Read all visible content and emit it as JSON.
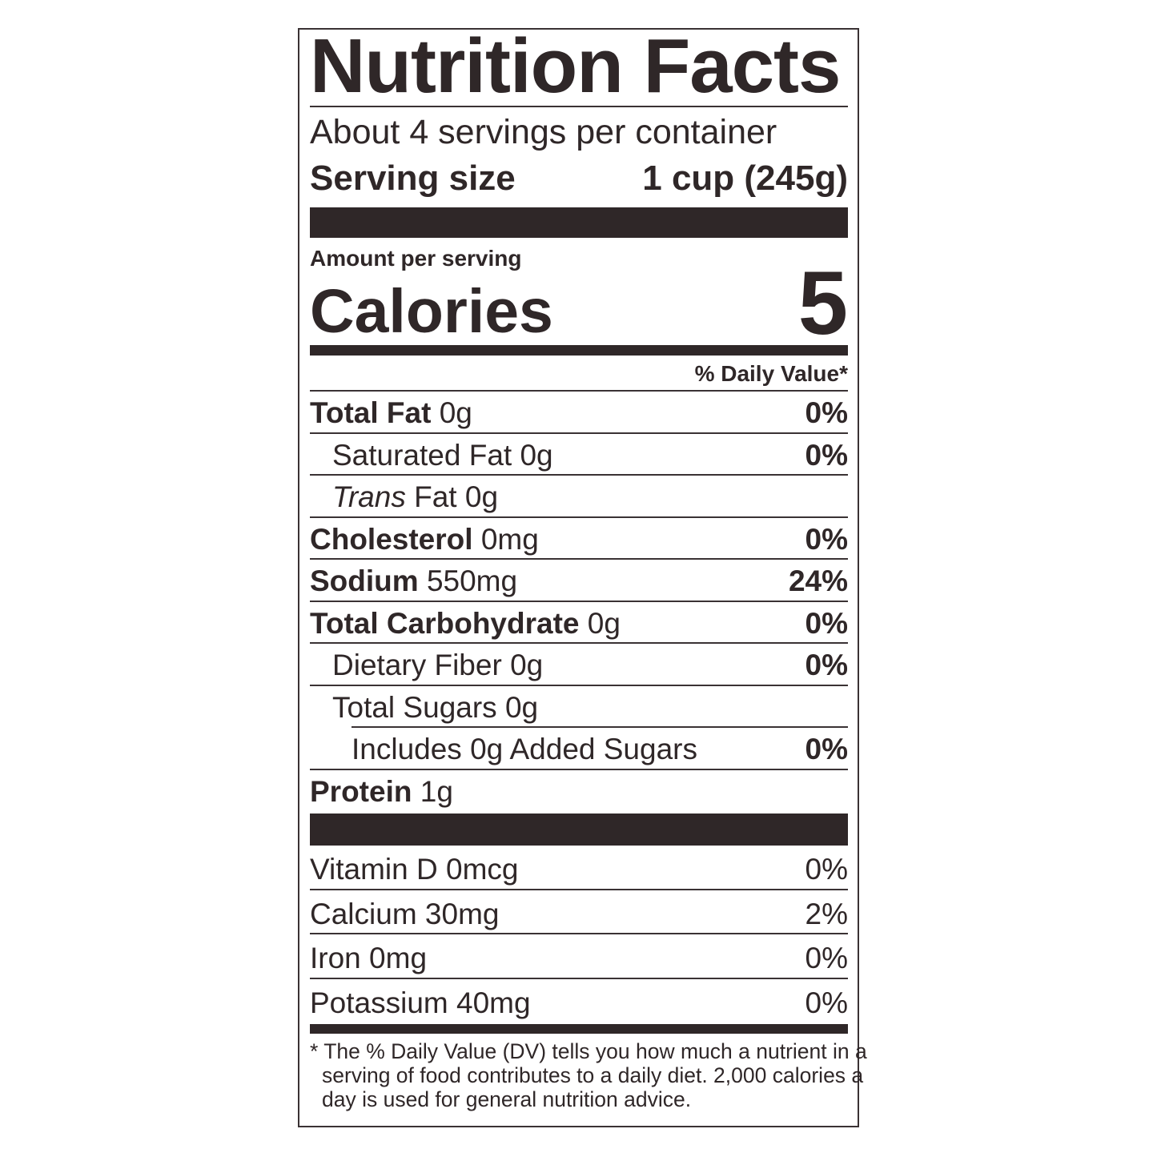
{
  "title": "Nutrition Facts",
  "servings_per_container": "About 4 servings per container",
  "serving_size": {
    "label": "Serving size",
    "value": "1 cup (245g)"
  },
  "amount_per_serving": "Amount per serving",
  "calories": {
    "label": "Calories",
    "value": "5"
  },
  "daily_value_header": "% Daily Value*",
  "nutrients": [
    {
      "name": "Total Fat",
      "amount": "0g",
      "dv": "0%"
    },
    {
      "name": "Saturated Fat",
      "amount": "0g",
      "dv": "0%"
    },
    {
      "name_italic": "Trans",
      "name": "Fat",
      "amount": "0g",
      "dv": ""
    },
    {
      "name": "Cholesterol",
      "amount": "0mg",
      "dv": "0%"
    },
    {
      "name": "Sodium",
      "amount": "550mg",
      "dv": "24%"
    },
    {
      "name": "Total Carbohydrate",
      "amount": "0g",
      "dv": "0%"
    },
    {
      "name": "Dietary Fiber",
      "amount": "0g",
      "dv": "0%"
    },
    {
      "name": "Total Sugars",
      "amount": "0g",
      "dv": ""
    },
    {
      "name": "Includes 0g Added Sugars",
      "amount": "",
      "dv": "0%"
    },
    {
      "name": "Protein",
      "amount": "1g",
      "dv": ""
    }
  ],
  "vitamins": [
    {
      "name": "Vitamin D",
      "amount": "0mcg",
      "dv": "0%"
    },
    {
      "name": "Calcium",
      "amount": "30mg",
      "dv": "2%"
    },
    {
      "name": "Iron",
      "amount": "0mg",
      "dv": "0%"
    },
    {
      "name": "Potassium",
      "amount": "40mg",
      "dv": "0%"
    }
  ],
  "footnote": [
    "* The % Daily Value (DV) tells you how much a nutrient in a",
    "serving of food contributes to a daily diet. 2,000 calories a",
    "day is used for general nutrition advice."
  ],
  "colors": {
    "ink": "#2f2728",
    "background": "#ffffff"
  }
}
